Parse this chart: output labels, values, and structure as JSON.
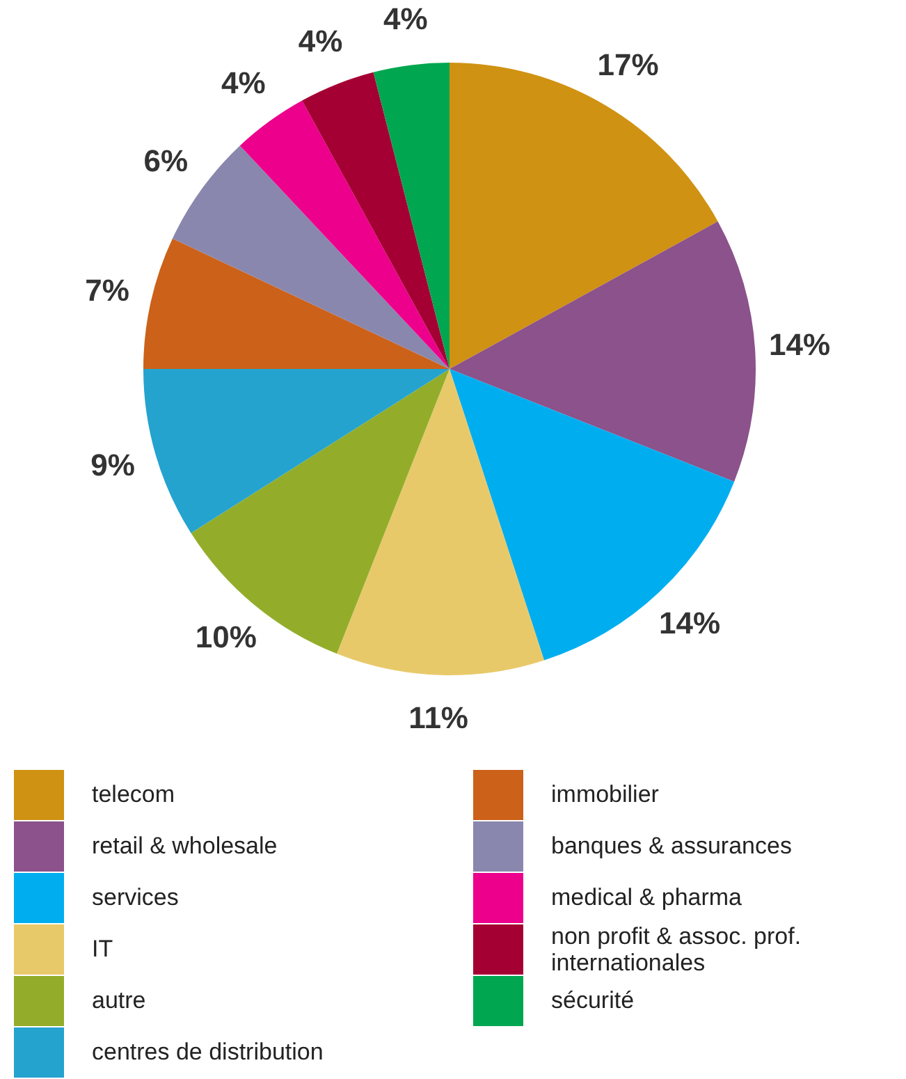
{
  "chart_data": {
    "type": "pie",
    "categories": [
      "telecom",
      "retail & wholesale",
      "services",
      "IT",
      "autre",
      "centres de distribution",
      "immobilier",
      "banques & assurances",
      "medical & pharma",
      "non profit & assoc. prof. internationales",
      "sécurité"
    ],
    "values": [
      17,
      14,
      14,
      11,
      10,
      9,
      7,
      6,
      4,
      4,
      4
    ],
    "value_labels": [
      "17%",
      "14%",
      "14%",
      "11%",
      "10%",
      "9%",
      "7%",
      "6%",
      "4%",
      "4%",
      "4%"
    ],
    "colors": [
      "#d09212",
      "#8b528b",
      "#00aeef",
      "#e8c96a",
      "#93ad2b",
      "#24a3cf",
      "#cc6119",
      "#8a87ae",
      "#ec008c",
      "#a50034",
      "#00a650"
    ],
    "legend": "bottom"
  }
}
